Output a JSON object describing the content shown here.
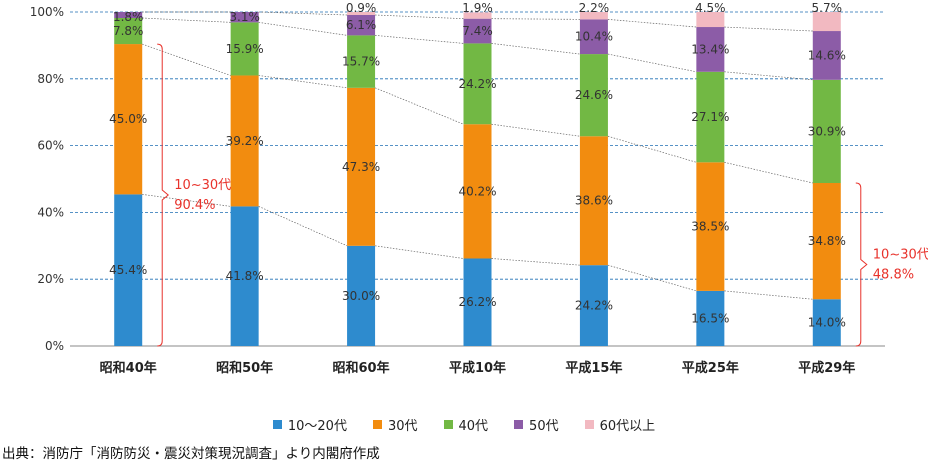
{
  "chart_data": {
    "type": "bar",
    "stacked": true,
    "categories": [
      "昭和40年",
      "昭和50年",
      "昭和60年",
      "平成10年",
      "平成15年",
      "平成25年",
      "平成29年"
    ],
    "series": [
      {
        "name": "10～20代",
        "color": "#2e8bce",
        "values": [
          45.4,
          41.8,
          30.0,
          26.2,
          24.2,
          16.5,
          14.0
        ]
      },
      {
        "name": "30代",
        "color": "#f28c0f",
        "values": [
          45.0,
          39.2,
          47.3,
          40.2,
          38.6,
          38.5,
          34.8
        ]
      },
      {
        "name": "40代",
        "color": "#72b844",
        "values": [
          7.8,
          15.9,
          15.7,
          24.2,
          24.6,
          27.1,
          30.9
        ]
      },
      {
        "name": "50代",
        "color": "#8c5ca7",
        "values": [
          1.8,
          3.1,
          6.1,
          7.4,
          10.4,
          13.4,
          14.6
        ]
      },
      {
        "name": "60代以上",
        "color": "#f2b9c1",
        "values": [
          0.0,
          0.0,
          0.9,
          1.9,
          2.2,
          4.5,
          5.7
        ]
      }
    ],
    "data_labels": [
      [
        "45.4%",
        "41.8%",
        "30.0%",
        "26.2%",
        "24.2%",
        "16.5%",
        "14.0%"
      ],
      [
        "45.0%",
        "39.2%",
        "47.3%",
        "40.2%",
        "38.6%",
        "38.5%",
        "34.8%"
      ],
      [
        "7.8%",
        "15.9%",
        "15.7%",
        "24.2%",
        "24.6%",
        "27.1%",
        "30.9%"
      ],
      [
        "1.8%",
        "3.1%",
        "6.1%",
        "7.4%",
        "10.4%",
        "13.4%",
        "14.6%"
      ],
      [
        "",
        "",
        "0.9%",
        "1.9%",
        "2.2%",
        "4.5%",
        "5.7%"
      ]
    ],
    "yticks": [
      "0%",
      "20%",
      "40%",
      "60%",
      "80%",
      "100%"
    ],
    "ylim": [
      0,
      100
    ],
    "annotations": [
      {
        "line1": "10~30代",
        "line2": "90.4%",
        "category_index": 0,
        "from": 0,
        "to": 90.4,
        "color": "#e8322b"
      },
      {
        "line1": "10~30代",
        "line2": "48.8%",
        "category_index": 6,
        "from": 0,
        "to": 48.8,
        "color": "#e8322b"
      }
    ],
    "gridlines": true,
    "legend_position": "bottom"
  },
  "source_text": "出典：消防庁「消防防災・震災対策現況調査」より内閣府作成"
}
